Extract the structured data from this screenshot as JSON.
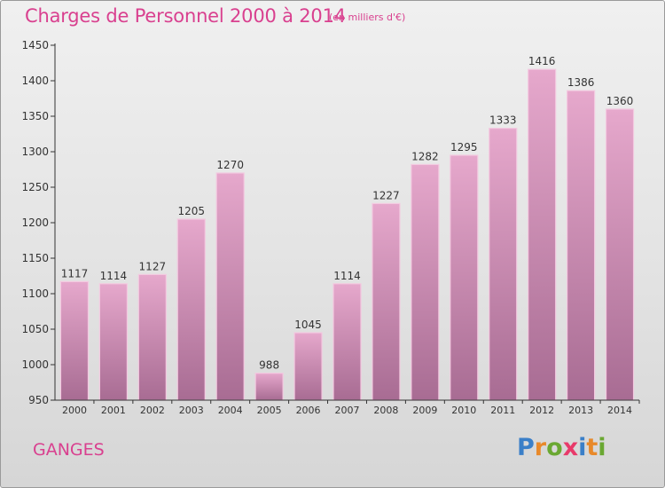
{
  "header": {
    "title": "Charges de Personnel 2000 à 2014",
    "subtitle": "(en milliers d'€)"
  },
  "footer": {
    "city": "GANGES",
    "brand": "Proxiti",
    "brand_letters": [
      "P",
      "r",
      "o",
      "x",
      "i",
      "t",
      "i"
    ],
    "brand_colors": [
      "#3a7fc8",
      "#e8892a",
      "#6aa832",
      "#e83a6a",
      "#3a7fc8",
      "#e8892a",
      "#6aa832"
    ]
  },
  "chart_data": {
    "type": "bar",
    "title": "Charges de Personnel 2000 à 2014",
    "subtitle": "(en milliers d'€)",
    "categories": [
      "2000",
      "2001",
      "2002",
      "2003",
      "2004",
      "2005",
      "2006",
      "2007",
      "2008",
      "2009",
      "2010",
      "2011",
      "2012",
      "2013",
      "2014"
    ],
    "values": [
      1117,
      1114,
      1127,
      1205,
      1270,
      988,
      1045,
      1114,
      1227,
      1282,
      1295,
      1333,
      1416,
      1386,
      1360
    ],
    "ylim": [
      950,
      1450
    ],
    "yticks": [
      950,
      1000,
      1050,
      1100,
      1150,
      1200,
      1250,
      1300,
      1350,
      1400,
      1450
    ],
    "grid": false,
    "colors": {
      "bar_top": "#e6a8cc",
      "bar_bottom": "#a86c93",
      "bar_border": "#f3c9e0",
      "axis": "#333333",
      "title": "#d9408f"
    }
  }
}
